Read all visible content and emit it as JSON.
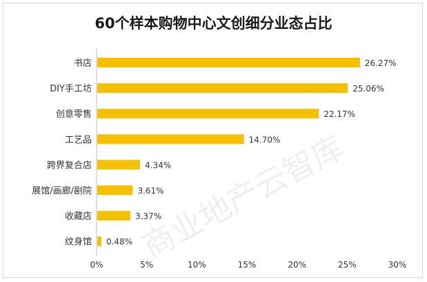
{
  "chart_data": {
    "type": "bar",
    "orientation": "horizontal",
    "title": "60个样本购物中心文创细分业态占比",
    "categories": [
      "书店",
      "DIY手工坊",
      "创意零售",
      "工艺品",
      "跨界复合店",
      "展馆/画廊/剧院",
      "收藏店",
      "纹身馆"
    ],
    "values": [
      26.27,
      25.06,
      22.17,
      14.7,
      4.34,
      3.61,
      3.37,
      0.48
    ],
    "value_labels": [
      "26.27%",
      "25.06%",
      "22.17%",
      "14.70%",
      "4.34%",
      "3.61%",
      "3.37%",
      "0.48%"
    ],
    "xlim": [
      0,
      30
    ],
    "x_ticks": [
      0,
      5,
      10,
      15,
      20,
      25,
      30
    ],
    "x_tick_labels": [
      "0%",
      "5%",
      "10%",
      "15%",
      "20%",
      "25%",
      "30%"
    ],
    "xlabel": "",
    "ylabel": "",
    "grid": false,
    "legend": "none",
    "bar_color": "#f5c000",
    "watermark": "商业地产云智库"
  }
}
